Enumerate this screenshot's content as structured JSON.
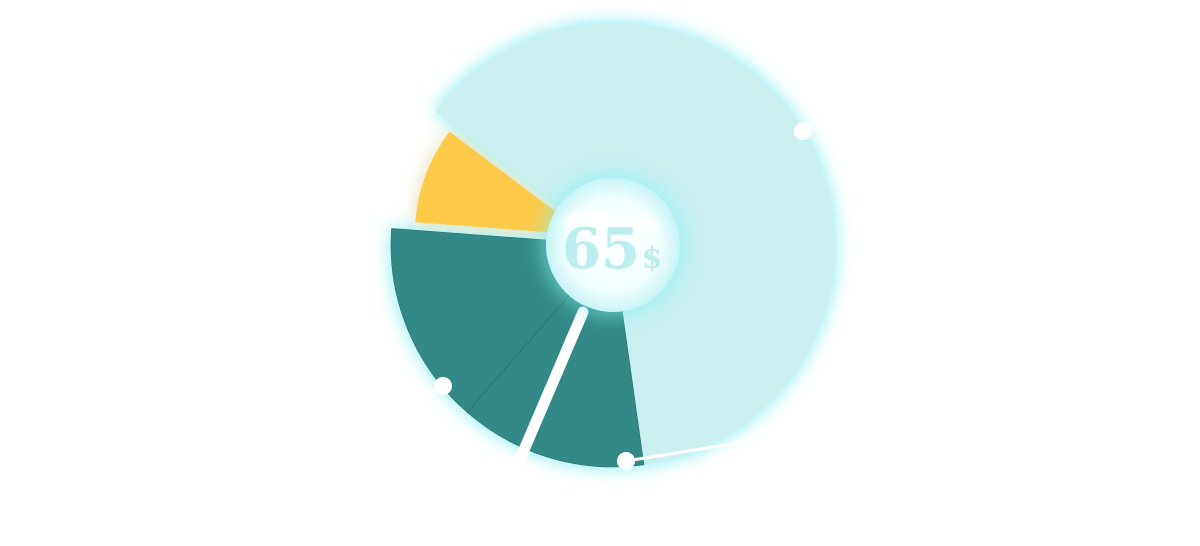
{
  "center_label": {
    "value": "65",
    "unit": "$"
  },
  "colors": {
    "light_teal": "#c9efef",
    "dark_teal": "#338987",
    "yellow": "#fdcb49",
    "glow_cyan": "#4fe6ec",
    "glow_yellow": "#c8b650",
    "center_text": "#bdeeee",
    "background": "#ffffff"
  },
  "chart_data": {
    "type": "pie",
    "slices": [
      {
        "value": 55,
        "color": "#c9efef"
      },
      {
        "value": 12,
        "color": "#338987"
      },
      {
        "value": 13,
        "color": "#338987"
      },
      {
        "value": 8,
        "color": "#fdcb49"
      }
    ]
  }
}
